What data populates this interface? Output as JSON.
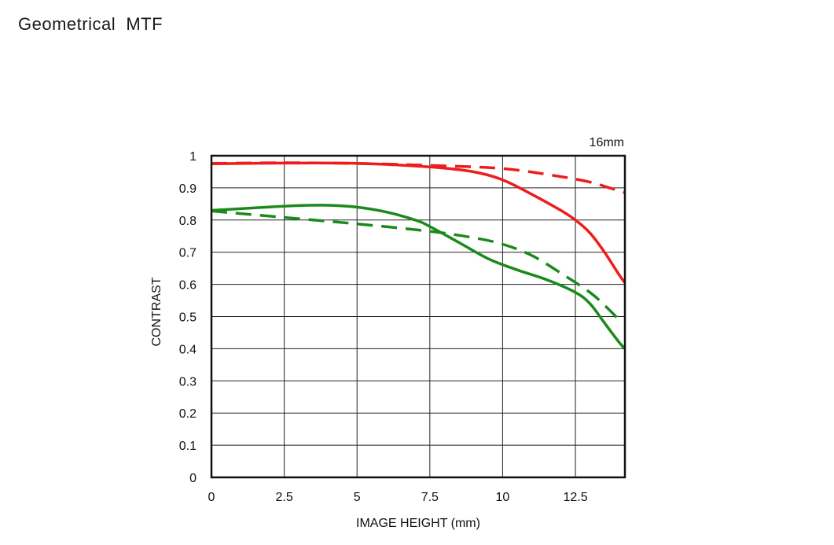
{
  "page": {
    "title": "Geometrical  MTF"
  },
  "chart_data": {
    "type": "line",
    "title": "Geometrical  MTF",
    "annotation": "16mm",
    "xlabel": "IMAGE HEIGHT (mm)",
    "ylabel": "CONTRAST",
    "xlim": [
      0,
      14.2
    ],
    "ylim": [
      0,
      1
    ],
    "x_ticks": [
      "0",
      "2.5",
      "5",
      "7.5",
      "10",
      "12.5"
    ],
    "x_tick_values": [
      0,
      2.5,
      5,
      7.5,
      10,
      12.5
    ],
    "y_ticks": [
      "0",
      "0.1",
      "0.2",
      "0.3",
      "0.4",
      "0.5",
      "0.6",
      "0.7",
      "0.8",
      "0.9",
      "1"
    ],
    "y_tick_values": [
      0,
      0.1,
      0.2,
      0.3,
      0.4,
      0.5,
      0.6,
      0.7,
      0.8,
      0.9,
      1
    ],
    "grid": true,
    "legend": "none",
    "series": [
      {
        "color": "#ee1c1c",
        "dash": "solid",
        "points": [
          [
            0,
            0.975
          ],
          [
            2.5,
            0.977
          ],
          [
            5,
            0.976
          ],
          [
            7.5,
            0.965
          ],
          [
            9,
            0.95
          ],
          [
            10,
            0.925
          ],
          [
            11,
            0.88
          ],
          [
            12,
            0.83
          ],
          [
            12.5,
            0.8
          ],
          [
            13,
            0.76
          ],
          [
            13.5,
            0.7
          ],
          [
            14,
            0.63
          ],
          [
            14.2,
            0.605
          ]
        ]
      },
      {
        "color": "#ee1c1c",
        "dash": "dashed",
        "points": [
          [
            0,
            0.976
          ],
          [
            2.5,
            0.978
          ],
          [
            5,
            0.976
          ],
          [
            7.5,
            0.97
          ],
          [
            10,
            0.96
          ],
          [
            12,
            0.935
          ],
          [
            13,
            0.918
          ],
          [
            13.5,
            0.905
          ],
          [
            14.2,
            0.885
          ]
        ]
      },
      {
        "color": "#1a8a1a",
        "dash": "solid",
        "points": [
          [
            0,
            0.83
          ],
          [
            1.5,
            0.838
          ],
          [
            3,
            0.845
          ],
          [
            4,
            0.846
          ],
          [
            5,
            0.84
          ],
          [
            6,
            0.825
          ],
          [
            7,
            0.8
          ],
          [
            7.5,
            0.78
          ],
          [
            8.5,
            0.73
          ],
          [
            9.5,
            0.68
          ],
          [
            10.5,
            0.645
          ],
          [
            11.5,
            0.615
          ],
          [
            12.5,
            0.575
          ],
          [
            13,
            0.54
          ],
          [
            13.5,
            0.48
          ],
          [
            14,
            0.42
          ],
          [
            14.2,
            0.4
          ]
        ]
      },
      {
        "color": "#1a8a1a",
        "dash": "dashed",
        "points": [
          [
            0,
            0.828
          ],
          [
            2.5,
            0.808
          ],
          [
            5,
            0.788
          ],
          [
            7.5,
            0.765
          ],
          [
            9,
            0.745
          ],
          [
            10,
            0.725
          ],
          [
            11,
            0.69
          ],
          [
            12,
            0.635
          ],
          [
            13,
            0.575
          ],
          [
            13.5,
            0.535
          ],
          [
            14,
            0.49
          ]
        ]
      }
    ]
  }
}
